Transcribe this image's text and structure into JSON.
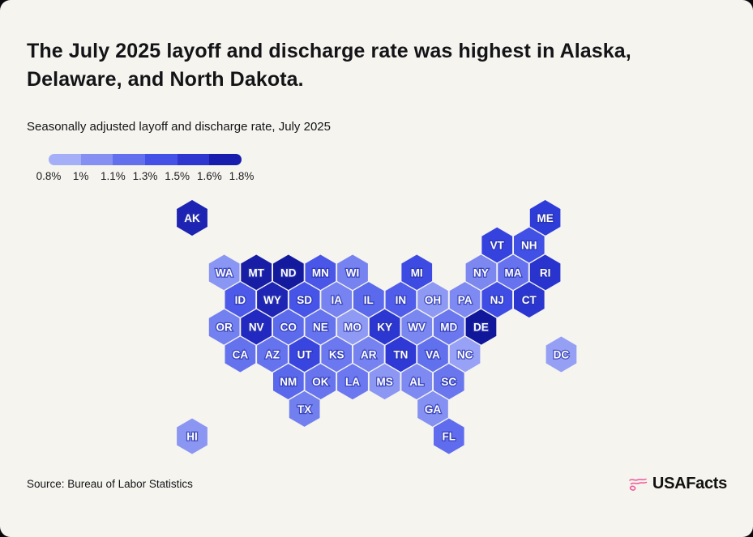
{
  "header": {
    "title": "The July 2025 layoff and discharge rate was highest in Alaska, Delaware, and North Dakota.",
    "subtitle": "Seasonally adjusted layoff and discharge rate, July 2025"
  },
  "legend": {
    "segment_colors": [
      "#a5aff7",
      "#8690f2",
      "#6270ed",
      "#4450e6",
      "#2d37cf",
      "#181dad"
    ],
    "tick_labels": [
      "0.8%",
      "1%",
      "1.1%",
      "1.3%",
      "1.5%",
      "1.6%",
      "1.8%"
    ]
  },
  "chart_data": {
    "type": "heatmap",
    "subtype": "state-hex-tile-map",
    "title": "Seasonally adjusted layoff and discharge rate, July 2025",
    "unit": "percent",
    "scale_range": [
      "0.8%",
      "1.8%"
    ],
    "highest_states": [
      "AK",
      "DE",
      "ND"
    ],
    "states": [
      {
        "abbr": "AK",
        "row": 0,
        "col": 0,
        "color": "#1d23b2"
      },
      {
        "abbr": "ME",
        "row": 0,
        "col": 22,
        "color": "#2e3cd8"
      },
      {
        "abbr": "VT",
        "row": 1,
        "col": 19,
        "color": "#3542de"
      },
      {
        "abbr": "NH",
        "row": 1,
        "col": 21,
        "color": "#4150e5"
      },
      {
        "abbr": "WA",
        "row": 2,
        "col": 2,
        "color": "#8a96f3"
      },
      {
        "abbr": "MT",
        "row": 2,
        "col": 4,
        "color": "#171da5"
      },
      {
        "abbr": "ND",
        "row": 2,
        "col": 6,
        "color": "#131a9e"
      },
      {
        "abbr": "MN",
        "row": 2,
        "col": 8,
        "color": "#4956e8"
      },
      {
        "abbr": "WI",
        "row": 2,
        "col": 10,
        "color": "#7682f0"
      },
      {
        "abbr": "MI",
        "row": 2,
        "col": 14,
        "color": "#3d4be3"
      },
      {
        "abbr": "NY",
        "row": 2,
        "col": 18,
        "color": "#7c88f0"
      },
      {
        "abbr": "MA",
        "row": 2,
        "col": 20,
        "color": "#6773ee"
      },
      {
        "abbr": "RI",
        "row": 2,
        "col": 22,
        "color": "#2933cd"
      },
      {
        "abbr": "ID",
        "row": 3,
        "col": 3,
        "color": "#4c59e9"
      },
      {
        "abbr": "WY",
        "row": 3,
        "col": 5,
        "color": "#1e25b4"
      },
      {
        "abbr": "SD",
        "row": 3,
        "col": 7,
        "color": "#4754e8"
      },
      {
        "abbr": "IA",
        "row": 3,
        "col": 9,
        "color": "#7683f0"
      },
      {
        "abbr": "IL",
        "row": 3,
        "col": 11,
        "color": "#5b69ec"
      },
      {
        "abbr": "IN",
        "row": 3,
        "col": 13,
        "color": "#4f5dea"
      },
      {
        "abbr": "OH",
        "row": 3,
        "col": 15,
        "color": "#8e99f3"
      },
      {
        "abbr": "PA",
        "row": 3,
        "col": 17,
        "color": "#7e8af1"
      },
      {
        "abbr": "NJ",
        "row": 3,
        "col": 19,
        "color": "#3f4de4"
      },
      {
        "abbr": "CT",
        "row": 3,
        "col": 21,
        "color": "#2b36d0"
      },
      {
        "abbr": "OR",
        "row": 4,
        "col": 2,
        "color": "#7380f0"
      },
      {
        "abbr": "NV",
        "row": 4,
        "col": 4,
        "color": "#2229c0"
      },
      {
        "abbr": "CO",
        "row": 4,
        "col": 6,
        "color": "#5c6aec"
      },
      {
        "abbr": "NE",
        "row": 4,
        "col": 8,
        "color": "#6673ee"
      },
      {
        "abbr": "MO",
        "row": 4,
        "col": 10,
        "color": "#8f9af4"
      },
      {
        "abbr": "KY",
        "row": 4,
        "col": 12,
        "color": "#2c37d2"
      },
      {
        "abbr": "WV",
        "row": 4,
        "col": 14,
        "color": "#7a87f1"
      },
      {
        "abbr": "MD",
        "row": 4,
        "col": 16,
        "color": "#6b77ee"
      },
      {
        "abbr": "DE",
        "row": 4,
        "col": 18,
        "color": "#10179a"
      },
      {
        "abbr": "CA",
        "row": 5,
        "col": 3,
        "color": "#6572ee"
      },
      {
        "abbr": "AZ",
        "row": 5,
        "col": 5,
        "color": "#6673ee"
      },
      {
        "abbr": "UT",
        "row": 5,
        "col": 7,
        "color": "#3945df"
      },
      {
        "abbr": "KS",
        "row": 5,
        "col": 9,
        "color": "#6b78ef"
      },
      {
        "abbr": "AR",
        "row": 5,
        "col": 11,
        "color": "#7582f0"
      },
      {
        "abbr": "TN",
        "row": 5,
        "col": 13,
        "color": "#2e39d6"
      },
      {
        "abbr": "VA",
        "row": 5,
        "col": 15,
        "color": "#6170ed"
      },
      {
        "abbr": "NC",
        "row": 5,
        "col": 17,
        "color": "#97a1f5"
      },
      {
        "abbr": "DC",
        "row": 5,
        "col": 23,
        "color": "#95a0f4"
      },
      {
        "abbr": "NM",
        "row": 6,
        "col": 6,
        "color": "#5a68ec"
      },
      {
        "abbr": "OK",
        "row": 6,
        "col": 8,
        "color": "#6774ee"
      },
      {
        "abbr": "LA",
        "row": 6,
        "col": 10,
        "color": "#6b78ef"
      },
      {
        "abbr": "MS",
        "row": 6,
        "col": 12,
        "color": "#8c97f3"
      },
      {
        "abbr": "AL",
        "row": 6,
        "col": 14,
        "color": "#7e8af1"
      },
      {
        "abbr": "SC",
        "row": 6,
        "col": 16,
        "color": "#6976ee"
      },
      {
        "abbr": "TX",
        "row": 7,
        "col": 7,
        "color": "#7280ef"
      },
      {
        "abbr": "GA",
        "row": 7,
        "col": 15,
        "color": "#8490f2"
      },
      {
        "abbr": "HI",
        "row": 8,
        "col": 0,
        "color": "#8b96f2"
      },
      {
        "abbr": "FL",
        "row": 8,
        "col": 16,
        "color": "#5f6cee"
      }
    ]
  },
  "footer": {
    "source": "Source: Bureau of Labor Statistics",
    "logo_text": "USAFacts",
    "logo_color": "#f0579a"
  }
}
